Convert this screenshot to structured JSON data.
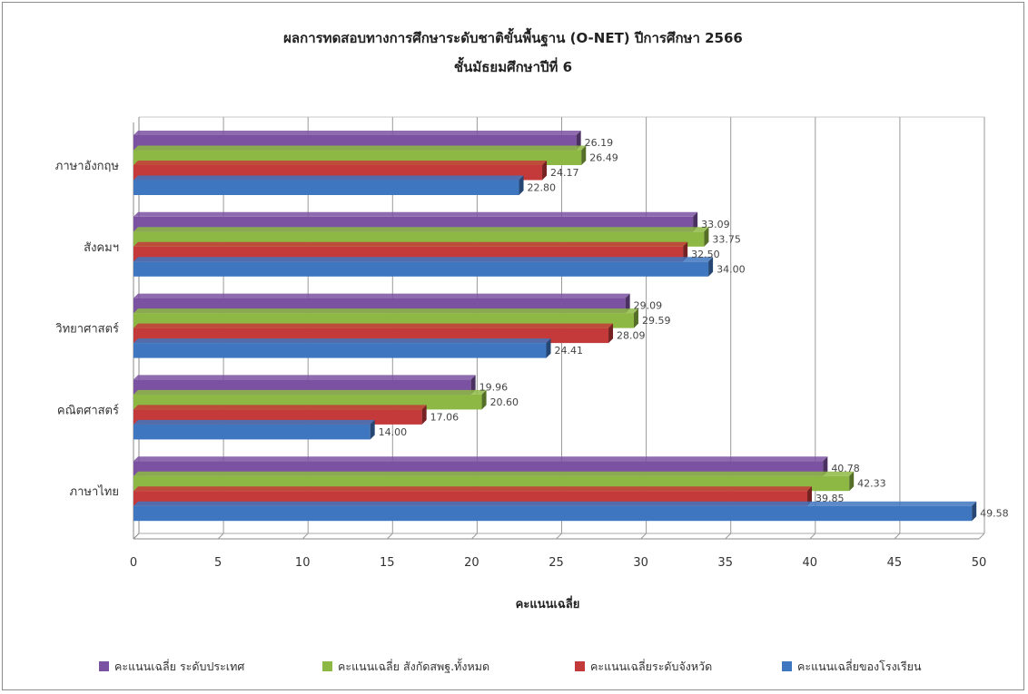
{
  "chart_data": {
    "type": "bar",
    "orientation": "horizontal",
    "title": "ผลการทดสอบทางการศึกษาระดับชาติขั้นพื้นฐาน (O-NET) ปีการศึกษา 2566",
    "subtitle": "ชั้นมัธยมศึกษาปีที่ 6",
    "xlabel": "คะแนนเฉลี่ย",
    "ylabel": "",
    "xlim": [
      0,
      50
    ],
    "xticks": [
      "0",
      "5",
      "10",
      "15",
      "20",
      "25",
      "30",
      "35",
      "40",
      "45",
      "50"
    ],
    "grid": true,
    "legend_position": "bottom",
    "categories": [
      "ภาษาอังกฤษ",
      "สังคมฯ",
      "วิทยาศาสตร์",
      "คณิตศาสตร์",
      "ภาษาไทย"
    ],
    "series": [
      {
        "name": "คะแนนเฉลี่ย ระดับประเทศ",
        "color": "#7b52a1",
        "values": [
          26.19,
          33.09,
          29.09,
          19.96,
          40.78
        ],
        "labels": [
          "26.19",
          "33.09",
          "29.09",
          "19.96",
          "40.78"
        ]
      },
      {
        "name": "คะแนนเฉลี่ย  สังกัดสพฐ.ทั้งหมด",
        "color": "#8db843",
        "values": [
          26.49,
          33.75,
          29.59,
          20.6,
          42.33
        ],
        "labels": [
          "26.49",
          "33.75",
          "29.59",
          "20.60",
          "42.33"
        ]
      },
      {
        "name": "คะแนนเฉลี่ยระดับจังหวัด",
        "color": "#c4393a",
        "values": [
          24.17,
          32.5,
          28.09,
          17.06,
          39.85
        ],
        "labels": [
          "24.17",
          "32.50",
          "28.09",
          "17.06",
          "39.85"
        ]
      },
      {
        "name": "คะแนนเฉลี่ยของโรงเรียน",
        "color": "#3f76c0",
        "values": [
          22.8,
          34.0,
          24.41,
          14.0,
          49.58
        ],
        "labels": [
          "22.80",
          "34.00",
          "24.41",
          "14.00",
          "49.58"
        ]
      }
    ]
  }
}
